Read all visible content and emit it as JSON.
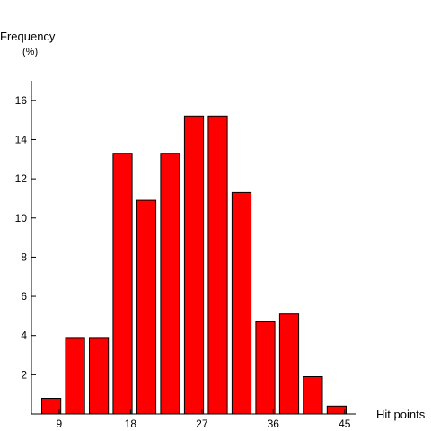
{
  "chart_data": {
    "type": "bar",
    "ylabel": "Frequency",
    "yunit": "(%)",
    "xlabel": "Hit points",
    "x": [
      8,
      11,
      14,
      17,
      20,
      23,
      26,
      29,
      32,
      35,
      38,
      41,
      44
    ],
    "values": [
      0.8,
      3.9,
      3.9,
      13.3,
      10.9,
      13.3,
      15.2,
      15.2,
      11.3,
      4.7,
      5.1,
      1.9,
      0.4
    ],
    "xticks": [
      9,
      18,
      27,
      36,
      45
    ],
    "yticks": [
      2,
      4,
      6,
      8,
      10,
      12,
      14,
      16
    ],
    "xlim": [
      5.5,
      46.5
    ],
    "ylim": [
      0,
      17
    ],
    "bar_width": 2.4,
    "grid": false,
    "colors": {
      "bar": "#ff0000",
      "edge": "#000000",
      "axis": "#000000"
    }
  }
}
